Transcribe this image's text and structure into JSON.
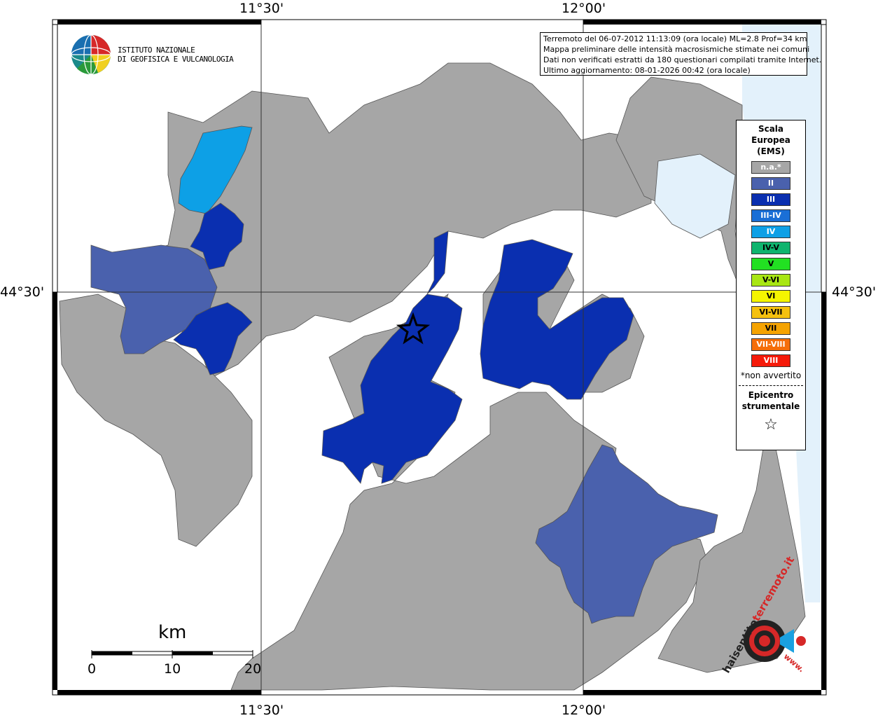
{
  "coordinates": {
    "top_left_lon": "11°30'",
    "top_right_lon": "12°00'",
    "bottom_left_lon": "11°30'",
    "bottom_right_lon": "12°00'",
    "left_lat": "44°30'",
    "right_lat": "44°30'"
  },
  "logo": {
    "line1": "ISTITUTO NAZIONALE",
    "line2": "DI GEOFISICA E VULCANOLOGIA"
  },
  "info": {
    "line1": "Terremoto del 06-07-2012 11:13:09 (ora locale) ML=2.8 Prof=34 km",
    "line2": "Mappa preliminare delle intensità macrosismiche stimate nei comuni",
    "line3": "Dati non verificati estratti da 180 questionari compilati tramite Internet.",
    "line4": "Ultimo aggiornamento: 08-01-2026 00:42 (ora locale)"
  },
  "legend": {
    "title_line1": "Scala",
    "title_line2": "Europea",
    "title_line3": "(EMS)",
    "items": [
      {
        "label": "n.a.*",
        "color": "#a6a6a6"
      },
      {
        "label": "II",
        "color": "#4a61ad"
      },
      {
        "label": "III",
        "color": "#0a2fb0"
      },
      {
        "label": "III-IV",
        "color": "#1a6fd6"
      },
      {
        "label": "IV",
        "color": "#0da0e6"
      },
      {
        "label": "IV-V",
        "color": "#0fb46e"
      },
      {
        "label": "V",
        "color": "#22e022"
      },
      {
        "label": "V-VI",
        "color": "#a8e613"
      },
      {
        "label": "VI",
        "color": "#f5f500"
      },
      {
        "label": "VI-VII",
        "color": "#f5c10f"
      },
      {
        "label": "VII",
        "color": "#f5a300"
      },
      {
        "label": "VII-VIII",
        "color": "#f56e0a"
      },
      {
        "label": "VIII",
        "color": "#f51a0a"
      }
    ],
    "note": "*non avvertito",
    "epicenter_line1": "Epicentro",
    "epicenter_line2": "strumentale",
    "epicenter_symbol": "☆"
  },
  "scale": {
    "unit": "km",
    "labels": [
      "0",
      "10",
      "20"
    ]
  },
  "brand": {
    "text1": "haisentito",
    "text2": "terremoto.it",
    "text3": "www."
  },
  "colors": {
    "na": "#a6a6a6",
    "II": "#4a61ad",
    "III": "#0a2fb0",
    "IV": "#0da0e6",
    "sea": "#e3f1fb",
    "border": "#333333"
  }
}
